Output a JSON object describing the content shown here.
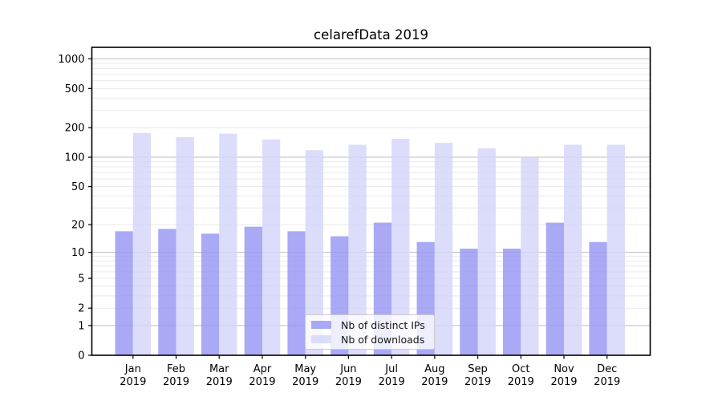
{
  "chart_data": {
    "type": "bar",
    "title": "celarefData 2019",
    "categories": [
      "Jan",
      "Feb",
      "Mar",
      "Apr",
      "May",
      "Jun",
      "Jul",
      "Aug",
      "Sep",
      "Oct",
      "Nov",
      "Dec"
    ],
    "x_axis": {
      "tick_label_line2": "2019"
    },
    "series": [
      {
        "name": "Nb of distinct IPs",
        "color": "rgba(150,150,243,0.82)",
        "values": [
          17,
          18,
          16,
          19,
          17,
          15,
          21,
          13,
          11,
          11,
          21,
          13
        ]
      },
      {
        "name": "Nb of downloads",
        "color": "rgba(212,212,250,0.82)",
        "values": [
          177,
          160,
          174,
          152,
          118,
          134,
          154,
          140,
          123,
          100,
          134,
          134
        ]
      }
    ],
    "y_axis": {
      "scale": "log10(value+1)",
      "range": [
        0,
        1000
      ],
      "ticks": [
        0,
        1,
        2,
        5,
        10,
        20,
        50,
        100,
        200,
        500,
        1000
      ]
    },
    "grid": {
      "major": [
        1,
        10,
        100,
        1000
      ],
      "minor": [
        2,
        3,
        4,
        5,
        6,
        7,
        8,
        9,
        20,
        30,
        40,
        50,
        60,
        70,
        80,
        90,
        200,
        300,
        400,
        500,
        600,
        700,
        800,
        900
      ]
    },
    "legend": {
      "position": "lower center"
    }
  }
}
